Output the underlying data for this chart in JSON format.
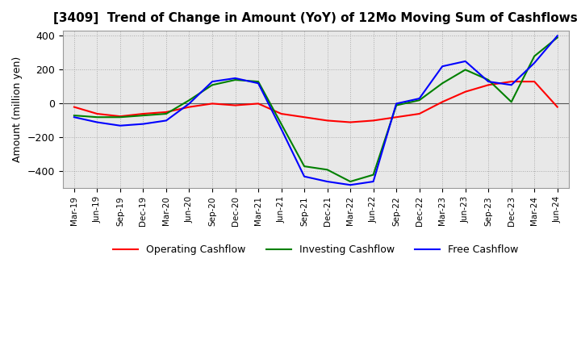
{
  "title": "[3409]  Trend of Change in Amount (YoY) of 12Mo Moving Sum of Cashflows",
  "ylabel": "Amount (million yen)",
  "ylim": [
    -500,
    430
  ],
  "yticks": [
    -400,
    -200,
    0,
    200,
    400
  ],
  "x_labels": [
    "Mar-19",
    "Jun-19",
    "Sep-19",
    "Dec-19",
    "Mar-20",
    "Jun-20",
    "Sep-20",
    "Dec-20",
    "Mar-21",
    "Jun-21",
    "Sep-21",
    "Dec-21",
    "Mar-22",
    "Jun-22",
    "Sep-22",
    "Dec-22",
    "Mar-23",
    "Jun-23",
    "Sep-23",
    "Dec-23",
    "Mar-24",
    "Jun-24"
  ],
  "operating": [
    -20,
    -60,
    -75,
    -60,
    -50,
    -20,
    0,
    -10,
    0,
    -60,
    -80,
    -100,
    -110,
    -100,
    -80,
    -60,
    10,
    70,
    110,
    130,
    130,
    -20
  ],
  "investing": [
    -70,
    -80,
    -80,
    -70,
    -60,
    20,
    110,
    140,
    130,
    -120,
    -370,
    -390,
    -460,
    -420,
    -10,
    20,
    120,
    200,
    140,
    10,
    280,
    390
  ],
  "free": [
    -80,
    -110,
    -130,
    -120,
    -100,
    0,
    130,
    150,
    120,
    -150,
    -430,
    -460,
    -480,
    -460,
    0,
    30,
    220,
    250,
    130,
    110,
    240,
    400
  ],
  "op_color": "#ff0000",
  "inv_color": "#008000",
  "free_color": "#0000ff",
  "bg_color": "#ffffff",
  "plot_bg_color": "#e8e8e8",
  "grid_color": "#aaaaaa",
  "title_fontsize": 11,
  "legend_labels": [
    "Operating Cashflow",
    "Investing Cashflow",
    "Free Cashflow"
  ]
}
